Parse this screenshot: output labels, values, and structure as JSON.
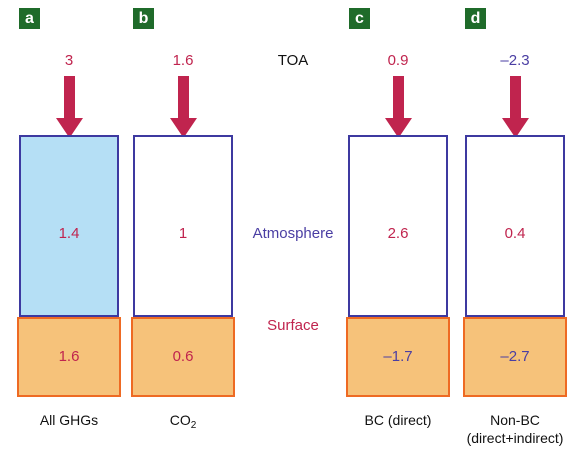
{
  "colors": {
    "panel_letter_bg": "#1f6b2a",
    "arrow": "#c0244e",
    "toa_text": "#c0244e",
    "atmosphere_text": "#4a3ea3",
    "surface_text": "#c0244e",
    "ghg_atmosphere_fill": "#b5dff5",
    "surface_fill": "#f6c27a",
    "surface_border": "#ee6a23",
    "atmosphere_border": "#3d39a0"
  },
  "levels": {
    "toa": "TOA",
    "atmosphere": "Atmosphere",
    "surface": "Surface"
  },
  "panels": [
    {
      "letter": "a",
      "toa": "3",
      "atmosphere": "1.4",
      "surface": "1.6",
      "label": "All GHGs"
    },
    {
      "letter": "b",
      "toa": "1.6",
      "atmosphere": "1",
      "surface": "0.6",
      "label_main": "CO",
      "label_sub": "2"
    },
    {
      "letter": "c",
      "toa": "0.9",
      "atmosphere": "2.6",
      "surface": "–1.7",
      "label": "BC (direct)"
    },
    {
      "letter": "d",
      "toa": "–2.3",
      "atmosphere": "0.4",
      "surface": "–2.7",
      "label_line1": "Non-BC",
      "label_line2": "(direct+indirect)"
    }
  ]
}
